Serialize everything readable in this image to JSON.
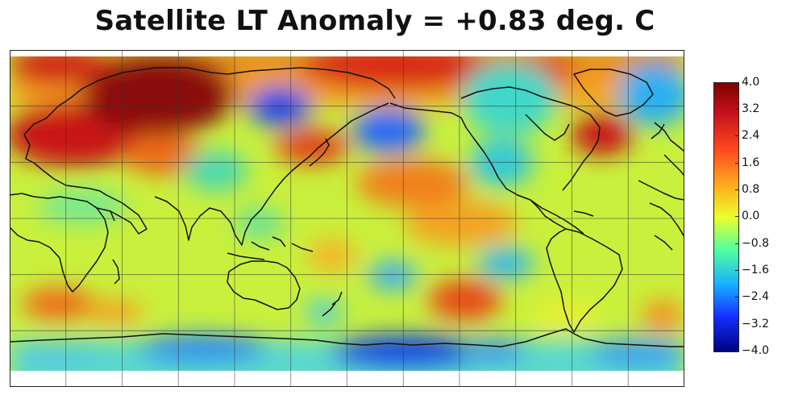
{
  "title": "Satellite LT Anomaly = +0.83 deg. C",
  "colorbar": {
    "ticks": [
      "4.0",
      "3.2",
      "2.4",
      "1.6",
      "0.8",
      "0.0",
      "−0.8",
      "−1.6",
      "−2.4",
      "−3.2",
      "−4.0"
    ],
    "min": -4.0,
    "max": 4.0
  },
  "map": {
    "projection": "Pacific-centered equirectangular",
    "grid": true
  }
}
